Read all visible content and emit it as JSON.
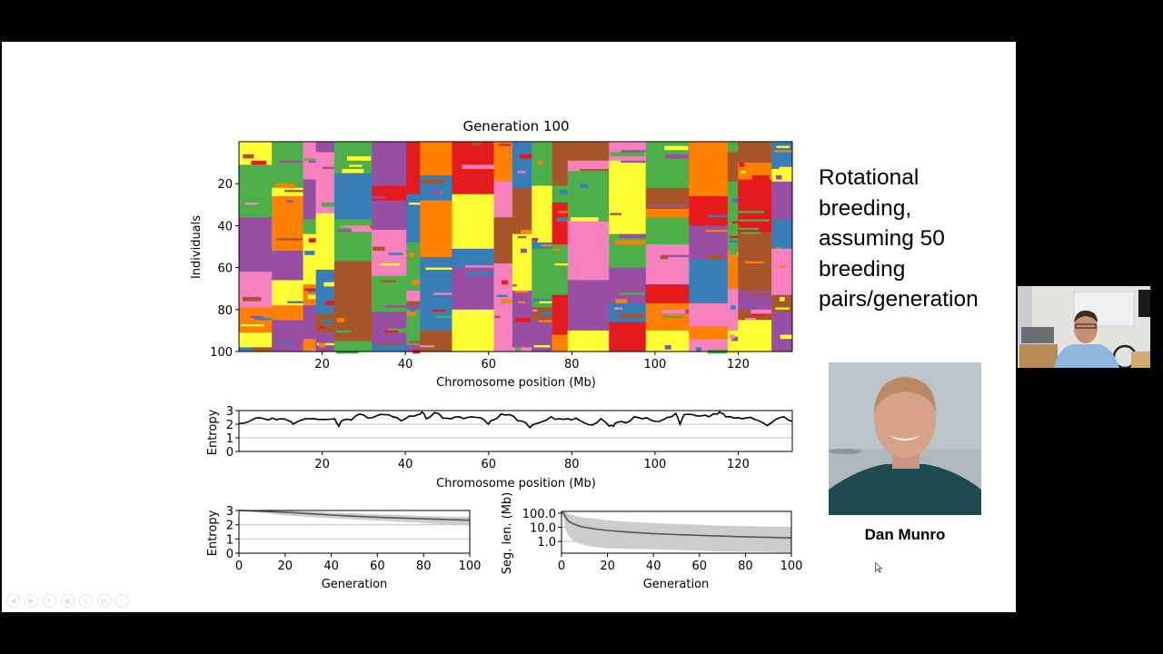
{
  "slide": {
    "side_text_lines": [
      "Rotational",
      "breeding,",
      "assuming 50",
      "breeding",
      "pairs/generation"
    ],
    "photo_name": "Dan Munro",
    "controls": [
      "previous-icon",
      "next-icon",
      "pen-icon",
      "slides-icon",
      "zoom-icon",
      "subtitles-icon",
      "more-icon"
    ]
  },
  "colors": {
    "palette": [
      "#4daf4a",
      "#e41a1c",
      "#377eb8",
      "#984ea3",
      "#ff7f00",
      "#ffff33",
      "#a65628",
      "#f781bf"
    ],
    "line": "#000000",
    "mean_line": "#555555",
    "band": "#c8c8c8",
    "grid": "#c0c0c0"
  },
  "chart_data": [
    {
      "type": "heatmap",
      "title": "Generation 100",
      "xlabel": "Chromosome position (Mb)",
      "ylabel": "Individuals",
      "xlim": [
        0,
        133
      ],
      "ylim": [
        100,
        0
      ],
      "xticks": [
        "20",
        "40",
        "60",
        "80",
        "100",
        "120"
      ],
      "xtick_values": [
        20,
        40,
        60,
        80,
        100,
        120
      ],
      "yticks": [
        "20",
        "40",
        "60",
        "80",
        "100"
      ],
      "ytick_values": [
        20,
        40,
        60,
        80,
        100
      ],
      "n_founders": 8,
      "n_individuals": 100
    },
    {
      "type": "line",
      "xlabel": "Chromosome position (Mb)",
      "ylabel": "Entropy",
      "xlim": [
        0,
        133
      ],
      "ylim": [
        0,
        3
      ],
      "xticks": [
        "20",
        "40",
        "60",
        "80",
        "100",
        "120"
      ],
      "xtick_values": [
        20,
        40,
        60,
        80,
        100,
        120
      ],
      "yticks": [
        "0",
        "1",
        "2",
        "3"
      ],
      "ytick_values": [
        0,
        1,
        2,
        3
      ],
      "grid_y": [
        1,
        2
      ],
      "x": [
        0,
        2,
        4,
        6,
        8,
        10,
        12,
        13,
        15,
        17,
        19,
        21,
        23,
        24,
        25,
        27,
        29,
        31,
        33,
        35,
        37,
        39,
        41,
        43,
        44,
        45,
        47,
        49,
        51,
        53,
        55,
        57,
        59,
        60,
        61,
        63,
        65,
        67,
        69,
        70,
        71,
        73,
        75,
        77,
        79,
        81,
        83,
        85,
        87,
        89,
        90,
        91,
        93,
        95,
        97,
        99,
        101,
        103,
        105,
        106,
        107,
        109,
        111,
        113,
        115,
        116,
        117,
        119,
        121,
        123,
        125,
        127,
        129,
        131,
        133
      ],
      "values": [
        2.05,
        2.15,
        2.45,
        2.4,
        2.45,
        2.4,
        2.25,
        2.0,
        2.3,
        2.4,
        2.35,
        2.35,
        2.4,
        1.85,
        2.3,
        2.3,
        2.75,
        2.45,
        2.6,
        2.7,
        2.55,
        2.25,
        2.6,
        2.7,
        2.9,
        2.4,
        2.85,
        2.45,
        2.4,
        2.55,
        2.5,
        2.5,
        2.3,
        2.0,
        2.3,
        2.75,
        2.7,
        2.25,
        2.1,
        1.75,
        2.0,
        2.2,
        2.55,
        2.4,
        2.4,
        2.45,
        2.1,
        1.95,
        2.4,
        1.85,
        1.85,
        2.15,
        2.1,
        2.55,
        2.4,
        2.3,
        2.2,
        2.5,
        2.8,
        2.0,
        2.7,
        2.7,
        2.6,
        2.55,
        2.75,
        2.8,
        2.55,
        2.45,
        2.4,
        2.5,
        2.25,
        1.9,
        2.35,
        2.55,
        2.2
      ]
    },
    {
      "type": "area",
      "xlabel": "Generation",
      "ylabel": "Entropy",
      "xlim": [
        0,
        100
      ],
      "ylim": [
        0,
        3
      ],
      "xticks": [
        "0",
        "20",
        "40",
        "60",
        "80",
        "100"
      ],
      "xtick_values": [
        0,
        20,
        40,
        60,
        80,
        100
      ],
      "yticks": [
        "0",
        "1",
        "2",
        "3"
      ],
      "ytick_values": [
        0,
        1,
        2,
        3
      ],
      "grid_y": [
        1,
        2
      ],
      "x": [
        0,
        10,
        20,
        30,
        40,
        50,
        60,
        70,
        80,
        90,
        100
      ],
      "series": [
        {
          "name": "mean",
          "values": [
            3.0,
            2.95,
            2.87,
            2.78,
            2.68,
            2.6,
            2.53,
            2.47,
            2.42,
            2.37,
            2.32
          ]
        },
        {
          "name": "upper",
          "values": [
            3.0,
            3.0,
            2.98,
            2.93,
            2.86,
            2.8,
            2.74,
            2.68,
            2.62,
            2.58,
            2.55
          ]
        },
        {
          "name": "lower",
          "values": [
            3.0,
            2.85,
            2.65,
            2.55,
            2.45,
            2.37,
            2.28,
            2.2,
            2.12,
            2.03,
            1.95
          ]
        }
      ]
    },
    {
      "type": "area",
      "xlabel": "Generation",
      "ylabel": "Seg. len. (Mb)",
      "yscale": "log",
      "xlim": [
        0,
        100
      ],
      "ylim": [
        0.15,
        133
      ],
      "xticks": [
        "0",
        "20",
        "40",
        "60",
        "80",
        "100"
      ],
      "xtick_values": [
        0,
        20,
        40,
        60,
        80,
        100
      ],
      "yticks": [
        "100.0",
        "10.0",
        "1.0"
      ],
      "ytick_values": [
        100,
        10,
        1
      ],
      "grid_y": [
        10,
        1
      ],
      "x": [
        0,
        1,
        2,
        3,
        5,
        8,
        10,
        15,
        20,
        30,
        40,
        50,
        60,
        70,
        80,
        90,
        100
      ],
      "series": [
        {
          "name": "mean",
          "values": [
            133,
            90,
            45,
            28,
            18,
            12,
            10,
            7.5,
            6,
            4.5,
            3.6,
            3.1,
            2.7,
            2.4,
            2.1,
            1.95,
            1.8
          ]
        },
        {
          "name": "upper",
          "values": [
            133,
            133,
            120,
            90,
            70,
            55,
            48,
            40,
            32,
            24,
            20,
            17,
            15,
            13,
            12,
            11,
            10
          ]
        },
        {
          "name": "lower",
          "values": [
            133,
            40,
            6,
            2.5,
            1.2,
            0.7,
            0.55,
            0.4,
            0.32,
            0.3,
            0.28,
            0.25,
            0.22,
            0.2,
            0.19,
            0.18,
            0.17
          ]
        }
      ]
    }
  ]
}
